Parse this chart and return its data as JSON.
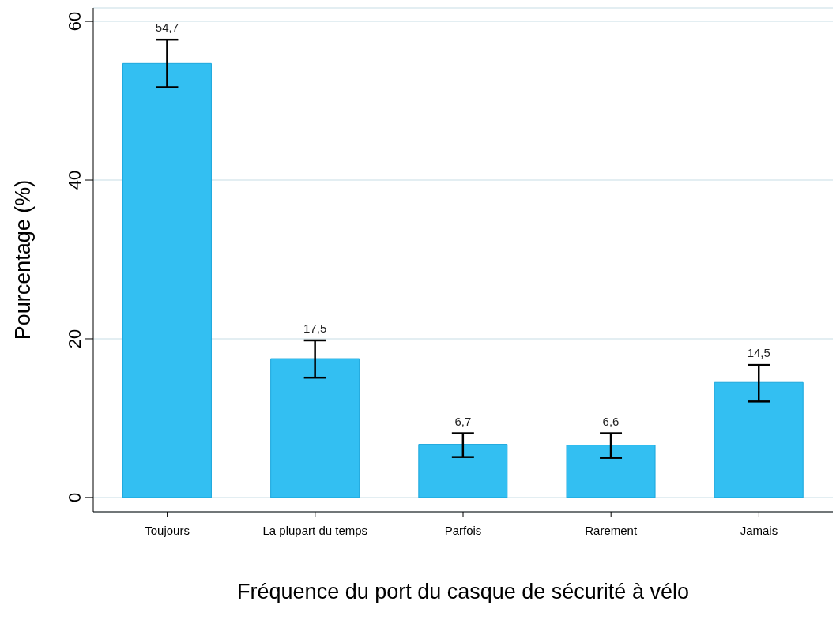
{
  "chart_data": {
    "type": "bar",
    "xlabel": "Fréquence du port du casque de sécurité à vélo",
    "ylabel": "Pourcentage (%)",
    "categories": [
      "Toujours",
      "La plupart du temps",
      "Parfois",
      "Rarement",
      "Jamais"
    ],
    "values": [
      54.7,
      17.5,
      6.7,
      6.6,
      14.5
    ],
    "value_labels": [
      "54,7",
      "17,5",
      "6,7",
      "6,6",
      "14,5"
    ],
    "errors": [
      [
        51.7,
        57.7
      ],
      [
        15.1,
        19.8
      ],
      [
        5.1,
        8.1
      ],
      [
        5.0,
        8.1
      ],
      [
        12.1,
        16.7
      ]
    ],
    "color": "#33bff2",
    "ylim": [
      -1.8,
      61.7
    ],
    "yticks": [
      0,
      20,
      40,
      60
    ],
    "grid": "y"
  }
}
